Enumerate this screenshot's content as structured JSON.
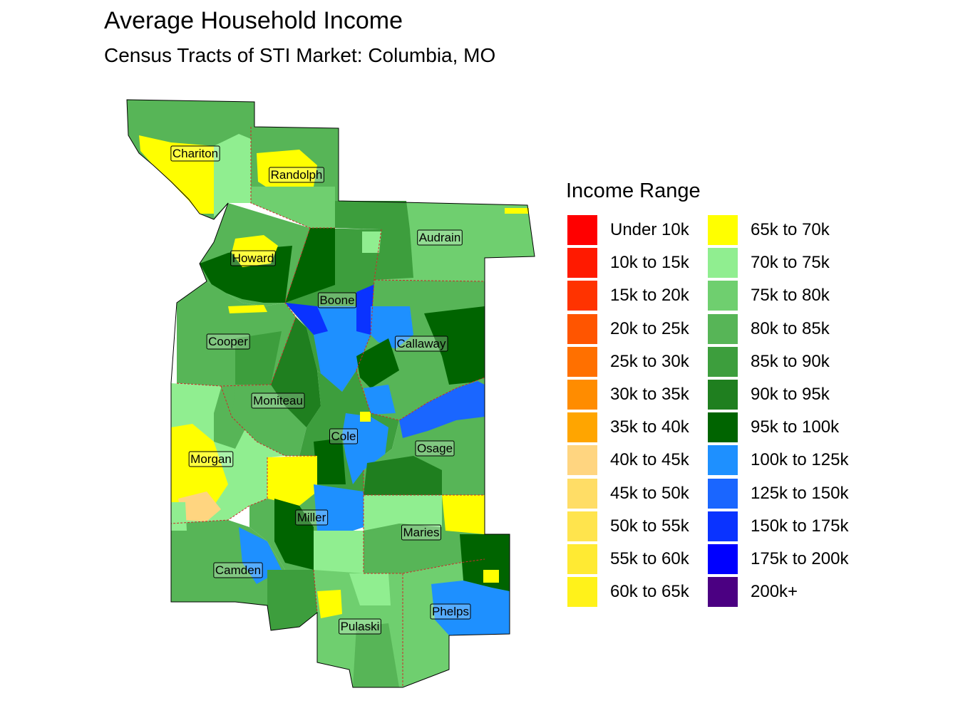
{
  "title": "Average Household Income",
  "subtitle": "Census Tracts of STI Market: Columbia, MO",
  "legend": {
    "title": "Income Range",
    "items": [
      {
        "label": "Under 10k",
        "color": "#ff0000"
      },
      {
        "label": "10k to 15k",
        "color": "#ff1a00"
      },
      {
        "label": "15k to 20k",
        "color": "#ff3300"
      },
      {
        "label": "20k to 25k",
        "color": "#ff5500"
      },
      {
        "label": "25k to 30k",
        "color": "#ff7000"
      },
      {
        "label": "30k to 35k",
        "color": "#ff8c00"
      },
      {
        "label": "35k to 40k",
        "color": "#ffa500"
      },
      {
        "label": "40k to 45k",
        "color": "#ffd580"
      },
      {
        "label": "45k to 50k",
        "color": "#ffdd66"
      },
      {
        "label": "50k to 55k",
        "color": "#ffe44d"
      },
      {
        "label": "55k to 60k",
        "color": "#ffea33"
      },
      {
        "label": "60k to 65k",
        "color": "#fff21a"
      },
      {
        "label": "65k to 70k",
        "color": "#ffff00"
      },
      {
        "label": "70k to 75k",
        "color": "#90ee90"
      },
      {
        "label": "75k to 80k",
        "color": "#6fcf6f"
      },
      {
        "label": "80k to 85k",
        "color": "#57b557"
      },
      {
        "label": "85k to 90k",
        "color": "#3d9e3d"
      },
      {
        "label": "90k to 95k",
        "color": "#1f7f1f"
      },
      {
        "label": "95k to 100k",
        "color": "#006400"
      },
      {
        "label": "100k to 125k",
        "color": "#1e90ff"
      },
      {
        "label": "125k to 150k",
        "color": "#1a66ff"
      },
      {
        "label": "150k to 175k",
        "color": "#0a33ff"
      },
      {
        "label": "175k to 200k",
        "color": "#0000ff"
      },
      {
        "label": "200k+",
        "color": "#4b0082"
      }
    ]
  },
  "counties": [
    {
      "name": "Chariton"
    },
    {
      "name": "Randolph"
    },
    {
      "name": "Audrain"
    },
    {
      "name": "Howard"
    },
    {
      "name": "Boone"
    },
    {
      "name": "Cooper"
    },
    {
      "name": "Callaway"
    },
    {
      "name": "Moniteau"
    },
    {
      "name": "Cole"
    },
    {
      "name": "Osage"
    },
    {
      "name": "Morgan"
    },
    {
      "name": "Miller"
    },
    {
      "name": "Maries"
    },
    {
      "name": "Camden"
    },
    {
      "name": "Phelps"
    },
    {
      "name": "Pulaski"
    }
  ]
}
